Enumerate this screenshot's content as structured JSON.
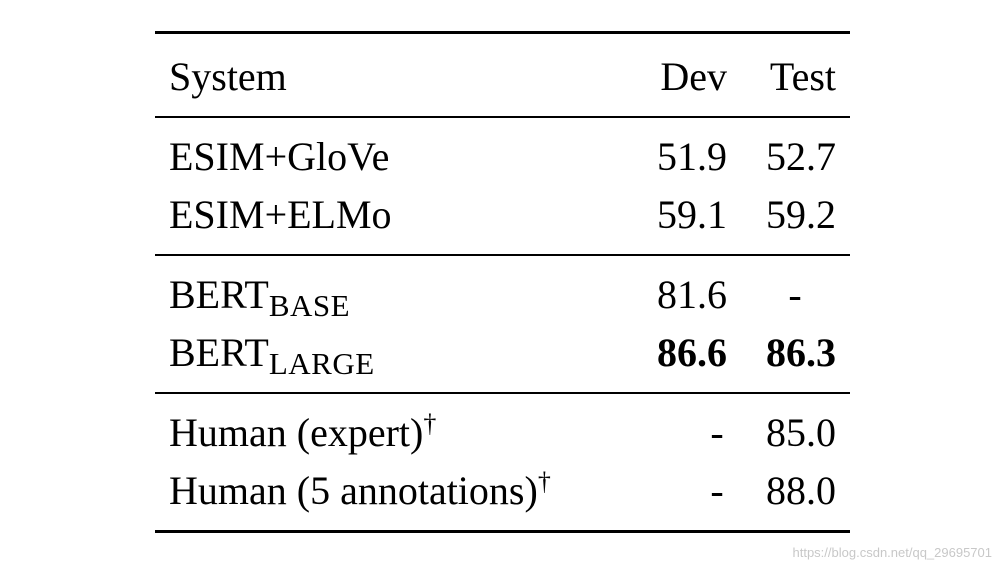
{
  "table": {
    "headers": {
      "system": "System",
      "dev": "Dev",
      "test": "Test"
    },
    "groups": [
      {
        "rows": [
          {
            "system": "ESIM+GloVe",
            "dev": "51.9",
            "test": "52.7"
          },
          {
            "system": "ESIM+ELMo",
            "dev": "59.1",
            "test": "59.2"
          }
        ]
      },
      {
        "rows": [
          {
            "system_main": "BERT",
            "system_sub": "BASE",
            "dev": "81.6",
            "test": "-"
          },
          {
            "system_main": "BERT",
            "system_sub": "LARGE",
            "dev": "86.6",
            "test": "86.3",
            "bold": true
          }
        ]
      },
      {
        "rows": [
          {
            "system": "Human (expert)",
            "system_sup": "†",
            "dev": "-",
            "test": "85.0"
          },
          {
            "system": "Human (5 annotations)",
            "system_sup": "†",
            "dev": "-",
            "test": "88.0"
          }
        ]
      }
    ]
  },
  "watermark": "https://blog.csdn.net/qq_29695701"
}
